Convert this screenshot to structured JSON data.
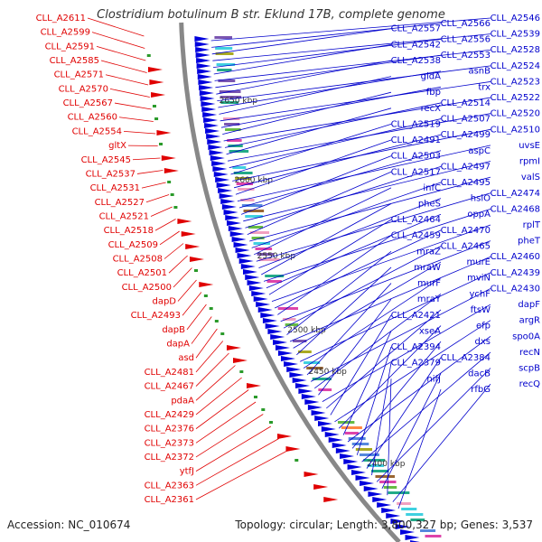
{
  "title": "Clostridium botulinum B str. Eklund 17B, complete genome",
  "accession": "Accession: NC_010674",
  "topology": "Topology: circular; Length: 3,800,327 bp; Genes: 3,537",
  "colors": {
    "left_labels": "#e00000",
    "right_labels": "#0000cc",
    "backbone": "#888888",
    "forward_genes": "#e00000",
    "reverse_genes": "#0000dd",
    "small_marks": "#2a9a2a"
  },
  "ticks": [
    "2650 kbp",
    "2600 kbp",
    "2550 kbp",
    "2500 kbp",
    "2450 kbp",
    "2400 kbp"
  ],
  "left_labels": [
    "CLL_A2611",
    "CLL_A2599",
    "CLL_A2591",
    "CLL_A2585",
    "CLL_A2571",
    "CLL_A2570",
    "CLL_A2567",
    "CLL_A2560",
    "CLL_A2554",
    "gltX",
    "CLL_A2545",
    "CLL_A2537",
    "CLL_A2531",
    "CLL_A2527",
    "CLL_A2521",
    "CLL_A2518",
    "CLL_A2509",
    "CLL_A2508",
    "CLL_A2501",
    "CLL_A2500",
    "dapD",
    "CLL_A2493",
    "dapB",
    "dapA",
    "asd",
    "CLL_A2481",
    "CLL_A2467",
    "pdaA",
    "CLL_A2429",
    "CLL_A2376",
    "CLL_A2373",
    "CLL_A2372",
    "ytfJ",
    "CLL_A2363",
    "CLL_A2361"
  ],
  "right_labels": [
    "CLL_A2546",
    "CLL_A2566",
    "CLL_A2557",
    "CLL_A2539",
    "CLL_A2556",
    "CLL_A2542",
    "CLL_A2528",
    "CLL_A2553",
    "CLL_A2538",
    "CLL_A2524",
    "asnB",
    "gidA",
    "CLL_A2523",
    "trx",
    "fbp",
    "CLL_A2522",
    "CLL_A2514",
    "recX",
    "CLL_A2520",
    "CLL_A2507",
    "CLL_A2519",
    "CLL_A2510",
    "CLL_A2499",
    "CLL_A2491",
    "uvsE",
    "aspC",
    "CLL_A2503",
    "rpmI",
    "CLL_A2497",
    "CLL_A2517",
    "valS",
    "CLL_A2495",
    "infC",
    "CLL_A2474",
    "hslO",
    "pheS",
    "CLL_A2468",
    "oppA",
    "CLL_A2464",
    "rplT",
    "CLL_A2470",
    "CLL_A2459",
    "pheT",
    "CLL_A2465",
    "mraZ",
    "CLL_A2460",
    "murE",
    "mraW",
    "CLL_A2439",
    "mviN",
    "murF",
    "CLL_A2430",
    "ychF",
    "mraY",
    "dapF",
    "ftsW",
    "CLL_A2421",
    "argR",
    "efp",
    "xseA",
    "spo0A",
    "dxs",
    "CLL_A2394",
    "recN",
    "CLL_A2384",
    "CLL_A2379",
    "scpB",
    "dacB",
    "nifJ",
    "recQ",
    "rfbG"
  ]
}
